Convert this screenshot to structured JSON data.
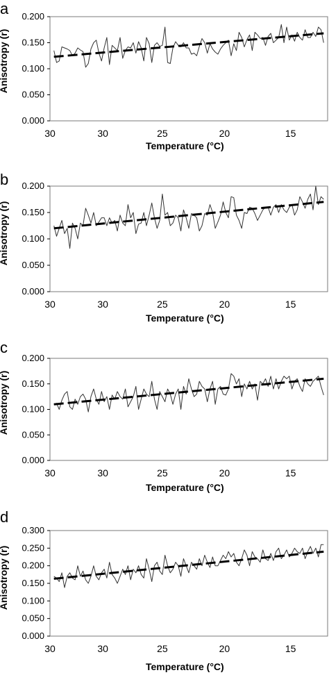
{
  "chart_data": [
    {
      "panel": "a",
      "type": "line",
      "ylabel": "Anisotropy (r)",
      "xlabel": "Temperature (°C)",
      "ylim": [
        0,
        0.2
      ],
      "yticks": [
        "0.000",
        "0.050",
        "0.100",
        "0.150",
        "0.200"
      ],
      "xticks": [
        "30",
        "30",
        "25",
        "20",
        "15"
      ],
      "xlim": [
        33.5,
        12.5
      ],
      "x_tick_values": [
        33.5,
        29.5,
        25.0,
        20.3,
        15.3
      ],
      "grid": false,
      "series": [
        {
          "style": "solid",
          "x": [
            33.2,
            33.0,
            32.8,
            32.6,
            32.4,
            32.2,
            32.0,
            31.8,
            31.6,
            31.4,
            31.2,
            31.0,
            30.8,
            30.6,
            30.4,
            30.2,
            30.0,
            29.8,
            29.6,
            29.4,
            29.2,
            29.0,
            28.8,
            28.6,
            28.4,
            28.2,
            28.0,
            27.8,
            27.6,
            27.4,
            27.2,
            27.0,
            26.8,
            26.6,
            26.4,
            26.2,
            26.0,
            25.8,
            25.6,
            25.4,
            25.2,
            25.0,
            24.8,
            24.6,
            24.4,
            24.2,
            24.0,
            23.8,
            23.6,
            23.4,
            23.2,
            23.0,
            22.8,
            22.6,
            22.4,
            22.2,
            22.0,
            21.8,
            21.6,
            21.4,
            21.2,
            21.0,
            20.8,
            20.6,
            20.4,
            20.2,
            20.0,
            19.8,
            19.6,
            19.4,
            19.2,
            19.0,
            18.8,
            18.6,
            18.4,
            18.2,
            18.0,
            17.8,
            17.6,
            17.4,
            17.2,
            17.0,
            16.8,
            16.6,
            16.4,
            16.2,
            16.0,
            15.8,
            15.6,
            15.4,
            15.2,
            15.0,
            14.8,
            14.6,
            14.4,
            14.2,
            14.0,
            13.8,
            13.6,
            13.4,
            13.2,
            13.0,
            12.8
          ],
          "y": [
            0.135,
            0.112,
            0.115,
            0.142,
            0.14,
            0.138,
            0.135,
            0.125,
            0.13,
            0.14,
            0.136,
            0.133,
            0.103,
            0.11,
            0.138,
            0.15,
            0.155,
            0.13,
            0.115,
            0.14,
            0.16,
            0.108,
            0.145,
            0.14,
            0.135,
            0.16,
            0.12,
            0.135,
            0.142,
            0.14,
            0.15,
            0.13,
            0.152,
            0.14,
            0.115,
            0.16,
            0.148,
            0.112,
            0.145,
            0.15,
            0.143,
            0.145,
            0.18,
            0.112,
            0.11,
            0.14,
            0.152,
            0.145,
            0.142,
            0.15,
            0.14,
            0.14,
            0.128,
            0.13,
            0.125,
            0.143,
            0.158,
            0.15,
            0.13,
            0.148,
            0.138,
            0.132,
            0.128,
            0.138,
            0.145,
            0.15,
            0.155,
            0.125,
            0.148,
            0.135,
            0.17,
            0.16,
            0.142,
            0.156,
            0.165,
            0.135,
            0.17,
            0.165,
            0.158,
            0.16,
            0.145,
            0.162,
            0.168,
            0.15,
            0.155,
            0.16,
            0.185,
            0.15,
            0.18,
            0.155,
            0.165,
            0.153,
            0.17,
            0.16,
            0.155,
            0.175,
            0.16,
            0.16,
            0.17,
            0.162,
            0.18,
            0.175,
            0.15
          ]
        },
        {
          "style": "dashed",
          "x": [
            33.2,
            12.8
          ],
          "y": [
            0.123,
            0.168
          ]
        }
      ]
    },
    {
      "panel": "b",
      "type": "line",
      "ylabel": "Anisotropy (r)",
      "xlabel": "Temperature (°C)",
      "ylim": [
        0,
        0.2
      ],
      "yticks": [
        "0.000",
        "0.050",
        "0.100",
        "0.150",
        "0.200"
      ],
      "xticks": [
        "30",
        "30",
        "25",
        "20",
        "15"
      ],
      "xlim": [
        33.5,
        12.5
      ],
      "x_tick_values": [
        33.5,
        29.5,
        25.0,
        20.3,
        15.3
      ],
      "grid": false,
      "series": [
        {
          "style": "solid",
          "x": [
            33.2,
            33.0,
            32.8,
            32.6,
            32.4,
            32.2,
            32.0,
            31.8,
            31.6,
            31.4,
            31.2,
            31.0,
            30.8,
            30.6,
            30.4,
            30.2,
            30.0,
            29.8,
            29.6,
            29.4,
            29.2,
            29.0,
            28.8,
            28.6,
            28.4,
            28.2,
            28.0,
            27.8,
            27.6,
            27.4,
            27.2,
            27.0,
            26.8,
            26.6,
            26.4,
            26.2,
            26.0,
            25.8,
            25.6,
            25.4,
            25.2,
            25.0,
            24.8,
            24.6,
            24.4,
            24.2,
            24.0,
            23.8,
            23.6,
            23.4,
            23.2,
            23.0,
            22.8,
            22.6,
            22.4,
            22.2,
            22.0,
            21.8,
            21.6,
            21.4,
            21.2,
            21.0,
            20.8,
            20.6,
            20.4,
            20.2,
            20.0,
            19.8,
            19.6,
            19.4,
            19.2,
            19.0,
            18.8,
            18.6,
            18.4,
            18.2,
            18.0,
            17.8,
            17.6,
            17.4,
            17.2,
            17.0,
            16.8,
            16.6,
            16.4,
            16.2,
            16.0,
            15.8,
            15.6,
            15.4,
            15.2,
            15.0,
            14.8,
            14.6,
            14.4,
            14.2,
            14.0,
            13.8,
            13.6,
            13.4,
            13.2,
            13.0,
            12.8
          ],
          "y": [
            0.125,
            0.105,
            0.12,
            0.135,
            0.11,
            0.12,
            0.082,
            0.13,
            0.12,
            0.1,
            0.13,
            0.125,
            0.158,
            0.145,
            0.13,
            0.15,
            0.125,
            0.132,
            0.14,
            0.14,
            0.125,
            0.14,
            0.13,
            0.135,
            0.115,
            0.145,
            0.13,
            0.125,
            0.165,
            0.14,
            0.15,
            0.11,
            0.128,
            0.13,
            0.15,
            0.125,
            0.145,
            0.168,
            0.14,
            0.12,
            0.135,
            0.185,
            0.145,
            0.15,
            0.125,
            0.13,
            0.145,
            0.14,
            0.115,
            0.155,
            0.14,
            0.12,
            0.148,
            0.145,
            0.14,
            0.115,
            0.125,
            0.148,
            0.145,
            0.165,
            0.15,
            0.12,
            0.132,
            0.145,
            0.17,
            0.15,
            0.14,
            0.18,
            0.178,
            0.145,
            0.135,
            0.12,
            0.15,
            0.148,
            0.16,
            0.158,
            0.148,
            0.135,
            0.145,
            0.155,
            0.16,
            0.16,
            0.145,
            0.16,
            0.165,
            0.15,
            0.165,
            0.155,
            0.15,
            0.16,
            0.165,
            0.145,
            0.155,
            0.18,
            0.17,
            0.158,
            0.175,
            0.185,
            0.155,
            0.2,
            0.165,
            0.18,
            0.175
          ]
        },
        {
          "style": "dashed",
          "x": [
            33.2,
            12.8
          ],
          "y": [
            0.12,
            0.17
          ]
        }
      ]
    },
    {
      "panel": "c",
      "type": "line",
      "ylabel": "Anisotropy (r)",
      "xlabel": "Temperature (°C)",
      "ylim": [
        0,
        0.2
      ],
      "yticks": [
        "0.000",
        "0.050",
        "0.100",
        "0.150",
        "0.200"
      ],
      "xticks": [
        "30",
        "30",
        "25",
        "20",
        "15"
      ],
      "xlim": [
        33.5,
        12.5
      ],
      "x_tick_values": [
        33.5,
        29.5,
        25.0,
        20.3,
        15.3
      ],
      "grid": false,
      "series": [
        {
          "style": "solid",
          "x": [
            33.2,
            33.0,
            32.8,
            32.6,
            32.4,
            32.2,
            32.0,
            31.8,
            31.6,
            31.4,
            31.2,
            31.0,
            30.8,
            30.6,
            30.4,
            30.2,
            30.0,
            29.8,
            29.6,
            29.4,
            29.2,
            29.0,
            28.8,
            28.6,
            28.4,
            28.2,
            28.0,
            27.8,
            27.6,
            27.4,
            27.2,
            27.0,
            26.8,
            26.6,
            26.4,
            26.2,
            26.0,
            25.8,
            25.6,
            25.4,
            25.2,
            25.0,
            24.8,
            24.6,
            24.4,
            24.2,
            24.0,
            23.8,
            23.6,
            23.4,
            23.2,
            23.0,
            22.8,
            22.6,
            22.4,
            22.2,
            22.0,
            21.8,
            21.6,
            21.4,
            21.2,
            21.0,
            20.8,
            20.6,
            20.4,
            20.2,
            20.0,
            19.8,
            19.6,
            19.4,
            19.2,
            19.0,
            18.8,
            18.6,
            18.4,
            18.2,
            18.0,
            17.8,
            17.6,
            17.4,
            17.2,
            17.0,
            16.8,
            16.6,
            16.4,
            16.2,
            16.0,
            15.8,
            15.6,
            15.4,
            15.2,
            15.0,
            14.8,
            14.6,
            14.4,
            14.2,
            14.0,
            13.8,
            13.6,
            13.4,
            13.2,
            13.0,
            12.8
          ],
          "y": [
            0.11,
            0.112,
            0.1,
            0.118,
            0.13,
            0.135,
            0.105,
            0.1,
            0.12,
            0.11,
            0.125,
            0.13,
            0.12,
            0.095,
            0.125,
            0.14,
            0.12,
            0.11,
            0.135,
            0.115,
            0.125,
            0.1,
            0.128,
            0.12,
            0.135,
            0.125,
            0.12,
            0.14,
            0.105,
            0.115,
            0.125,
            0.145,
            0.1,
            0.12,
            0.14,
            0.13,
            0.125,
            0.155,
            0.12,
            0.1,
            0.135,
            0.125,
            0.115,
            0.14,
            0.13,
            0.11,
            0.13,
            0.14,
            0.1,
            0.145,
            0.13,
            0.16,
            0.14,
            0.125,
            0.13,
            0.155,
            0.145,
            0.14,
            0.115,
            0.14,
            0.155,
            0.11,
            0.14,
            0.145,
            0.13,
            0.128,
            0.14,
            0.17,
            0.165,
            0.15,
            0.16,
            0.125,
            0.15,
            0.14,
            0.155,
            0.14,
            0.15,
            0.118,
            0.155,
            0.15,
            0.16,
            0.145,
            0.165,
            0.14,
            0.16,
            0.14,
            0.155,
            0.165,
            0.16,
            0.165,
            0.14,
            0.155,
            0.16,
            0.145,
            0.135,
            0.16,
            0.15,
            0.145,
            0.155,
            0.16,
            0.165,
            0.145,
            0.128
          ]
        },
        {
          "style": "dashed",
          "x": [
            33.2,
            12.8
          ],
          "y": [
            0.11,
            0.16
          ]
        }
      ]
    },
    {
      "panel": "d",
      "type": "line",
      "ylabel": "Anisotropy (r)",
      "xlabel": "Temperature (°C)",
      "ylim": [
        0,
        0.3
      ],
      "yticks": [
        "0.000",
        "0.050",
        "0.100",
        "0.150",
        "0.200",
        "0.250",
        "0.300"
      ],
      "xticks": [
        "30",
        "30",
        "25",
        "20",
        "15"
      ],
      "xlim": [
        33.5,
        12.5
      ],
      "x_tick_values": [
        33.5,
        29.5,
        25.0,
        20.3,
        15.3
      ],
      "grid": false,
      "series": [
        {
          "style": "solid",
          "x": [
            33.2,
            33.0,
            32.8,
            32.6,
            32.4,
            32.2,
            32.0,
            31.8,
            31.6,
            31.4,
            31.2,
            31.0,
            30.8,
            30.6,
            30.4,
            30.2,
            30.0,
            29.8,
            29.6,
            29.4,
            29.2,
            29.0,
            28.8,
            28.6,
            28.4,
            28.2,
            28.0,
            27.8,
            27.6,
            27.4,
            27.2,
            27.0,
            26.8,
            26.6,
            26.4,
            26.2,
            26.0,
            25.8,
            25.6,
            25.4,
            25.2,
            25.0,
            24.8,
            24.6,
            24.4,
            24.2,
            24.0,
            23.8,
            23.6,
            23.4,
            23.2,
            23.0,
            22.8,
            22.6,
            22.4,
            22.2,
            22.0,
            21.8,
            21.6,
            21.4,
            21.2,
            21.0,
            20.8,
            20.6,
            20.4,
            20.2,
            20.0,
            19.8,
            19.6,
            19.4,
            19.2,
            19.0,
            18.8,
            18.6,
            18.4,
            18.2,
            18.0,
            17.8,
            17.6,
            17.4,
            17.2,
            17.0,
            16.8,
            16.6,
            16.4,
            16.2,
            16.0,
            15.8,
            15.6,
            15.4,
            15.2,
            15.0,
            14.8,
            14.6,
            14.4,
            14.2,
            14.0,
            13.8,
            13.6,
            13.4,
            13.2,
            13.0,
            12.8
          ],
          "y": [
            0.17,
            0.165,
            0.155,
            0.18,
            0.138,
            0.17,
            0.18,
            0.165,
            0.16,
            0.2,
            0.17,
            0.185,
            0.16,
            0.15,
            0.17,
            0.2,
            0.17,
            0.16,
            0.18,
            0.19,
            0.165,
            0.21,
            0.175,
            0.165,
            0.15,
            0.17,
            0.19,
            0.175,
            0.2,
            0.16,
            0.19,
            0.18,
            0.2,
            0.175,
            0.165,
            0.22,
            0.19,
            0.155,
            0.2,
            0.21,
            0.185,
            0.175,
            0.23,
            0.2,
            0.18,
            0.19,
            0.21,
            0.2,
            0.17,
            0.22,
            0.2,
            0.18,
            0.21,
            0.2,
            0.19,
            0.22,
            0.2,
            0.23,
            0.21,
            0.195,
            0.225,
            0.2,
            0.2,
            0.215,
            0.23,
            0.22,
            0.24,
            0.225,
            0.235,
            0.21,
            0.2,
            0.22,
            0.245,
            0.23,
            0.2,
            0.24,
            0.225,
            0.22,
            0.21,
            0.245,
            0.22,
            0.215,
            0.235,
            0.215,
            0.24,
            0.25,
            0.22,
            0.23,
            0.245,
            0.225,
            0.235,
            0.25,
            0.24,
            0.235,
            0.25,
            0.22,
            0.24,
            0.255,
            0.235,
            0.25,
            0.225,
            0.26,
            0.26
          ]
        },
        {
          "style": "dashed",
          "x": [
            33.2,
            12.8
          ],
          "y": [
            0.163,
            0.24
          ]
        }
      ]
    }
  ]
}
